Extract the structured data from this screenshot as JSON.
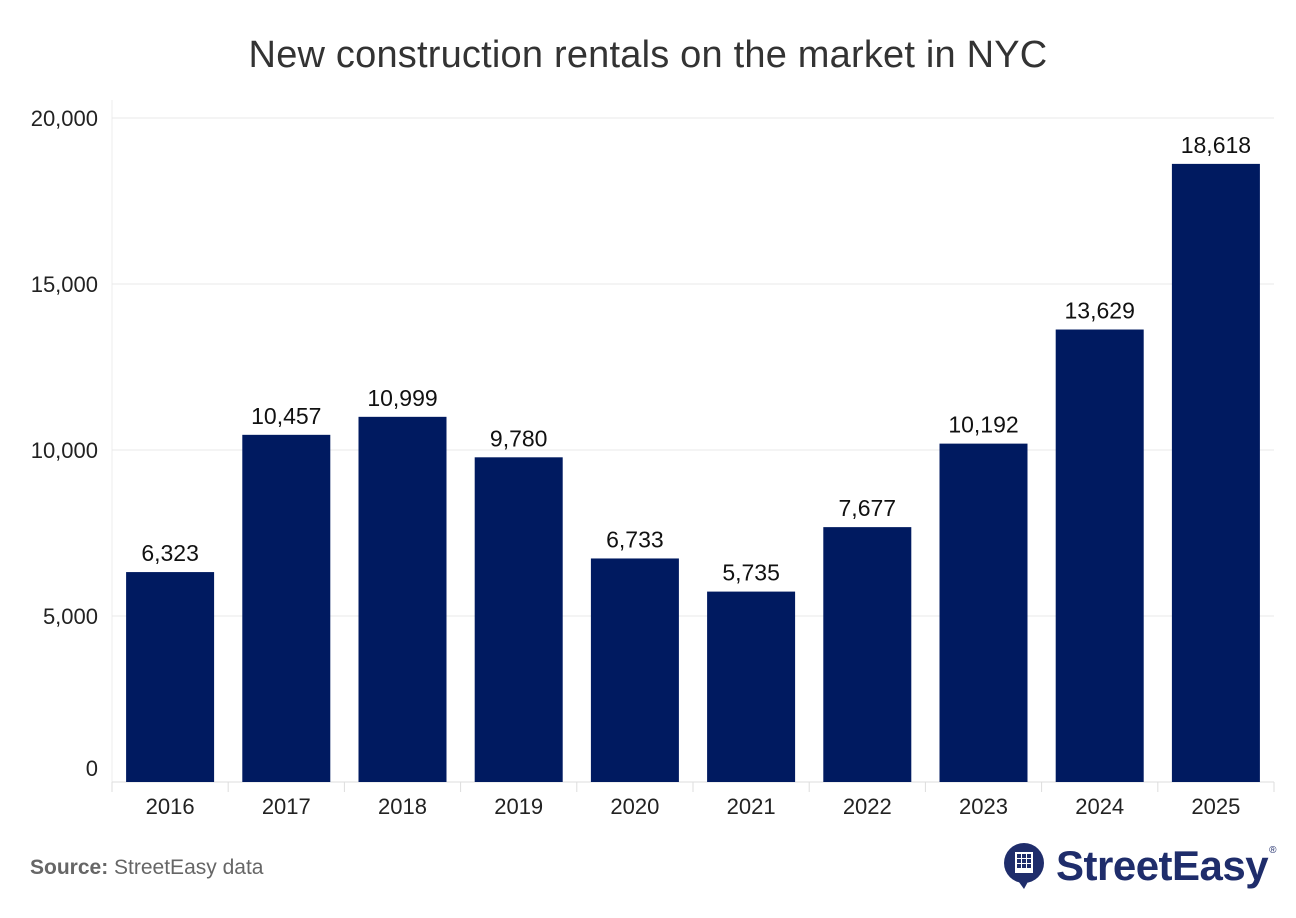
{
  "chart_data": {
    "type": "bar",
    "title": "New construction rentals on the market in NYC",
    "categories": [
      "2016",
      "2017",
      "2018",
      "2019",
      "2020",
      "2021",
      "2022",
      "2023",
      "2024",
      "2025"
    ],
    "values": [
      6323,
      10457,
      10999,
      9780,
      6733,
      5735,
      7677,
      10192,
      13629,
      18618
    ],
    "value_labels": [
      "6,323",
      "10,457",
      "10,999",
      "9,780",
      "6,733",
      "5,735",
      "7,677",
      "10,192",
      "13,629",
      "18,618"
    ],
    "yticks": [
      0,
      5000,
      10000,
      15000,
      20000
    ],
    "ytick_labels": [
      "0",
      "5,000",
      "10,000",
      "15,000",
      "20,000"
    ],
    "ylim": [
      0,
      20000
    ],
    "xlabel": "",
    "ylabel": "",
    "grid": true,
    "bar_color": "#001a60"
  },
  "footer": {
    "source_label": "Source:",
    "source_text": "StreetEasy data",
    "brand_name": "StreetEasy",
    "brand_mark": "®"
  },
  "colors": {
    "brand": "#1f2d6b",
    "grid": "#e8e8e8"
  }
}
